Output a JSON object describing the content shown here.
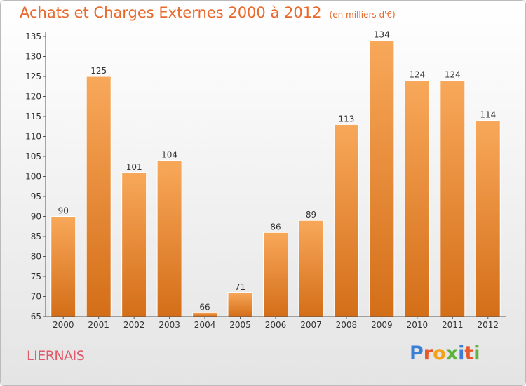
{
  "title": "Achats et Charges Externes 2000 à 2012",
  "subtitle": "(en milliers d'€)",
  "town": "LIERNAIS",
  "logo": {
    "text": "Proxiti",
    "colors": [
      "#3a7fd5",
      "#e8582a",
      "#f5a21b",
      "#5cb23a",
      "#3a7fd5",
      "#e8582a",
      "#5cb23a"
    ]
  },
  "colors": {
    "bar_top": "#f8a85a",
    "bar_bottom": "#d46e18",
    "title": "#e9692c",
    "town": "#e05a6a"
  },
  "chart_data": {
    "type": "bar",
    "categories": [
      "2000",
      "2001",
      "2002",
      "2003",
      "2004",
      "2005",
      "2006",
      "2007",
      "2008",
      "2009",
      "2010",
      "2011",
      "2012"
    ],
    "values": [
      90,
      125,
      101,
      104,
      66,
      71,
      86,
      89,
      113,
      134,
      124,
      124,
      114
    ],
    "ylim": [
      65,
      135
    ],
    "yticks": [
      65,
      70,
      75,
      80,
      85,
      90,
      95,
      100,
      105,
      110,
      115,
      120,
      125,
      130,
      135
    ],
    "grid": false
  }
}
